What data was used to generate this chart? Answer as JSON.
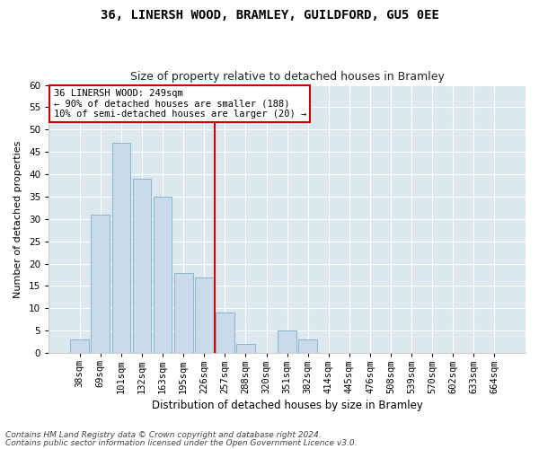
{
  "title1": "36, LINERSH WOOD, BRAMLEY, GUILDFORD, GU5 0EE",
  "title2": "Size of property relative to detached houses in Bramley",
  "xlabel": "Distribution of detached houses by size in Bramley",
  "ylabel": "Number of detached properties",
  "footnote1": "Contains HM Land Registry data © Crown copyright and database right 2024.",
  "footnote2": "Contains public sector information licensed under the Open Government Licence v3.0.",
  "annotation_title": "36 LINERSH WOOD: 249sqm",
  "annotation_line1": "← 90% of detached houses are smaller (188)",
  "annotation_line2": "10% of semi-detached houses are larger (20) →",
  "property_size": 249,
  "bar_labels": [
    "38sqm",
    "69sqm",
    "101sqm",
    "132sqm",
    "163sqm",
    "195sqm",
    "226sqm",
    "257sqm",
    "288sqm",
    "320sqm",
    "351sqm",
    "382sqm",
    "414sqm",
    "445sqm",
    "476sqm",
    "508sqm",
    "539sqm",
    "570sqm",
    "602sqm",
    "633sqm",
    "664sqm"
  ],
  "bar_values": [
    3,
    31,
    47,
    39,
    35,
    18,
    17,
    9,
    2,
    0,
    5,
    3,
    0,
    0,
    0,
    0,
    0,
    0,
    0,
    0,
    0
  ],
  "bar_color": "#c9daea",
  "bar_edge_color": "#8ab4cc",
  "vline_color": "#cc0000",
  "vline_pos": 6.5,
  "annotation_box_color": "#cc0000",
  "fig_bg_color": "#ffffff",
  "plot_bg_color": "#dbe8f0",
  "ylim": [
    0,
    60
  ],
  "yticks": [
    0,
    5,
    10,
    15,
    20,
    25,
    30,
    35,
    40,
    45,
    50,
    55,
    60
  ],
  "title1_fontsize": 10,
  "title2_fontsize": 9,
  "xlabel_fontsize": 8.5,
  "ylabel_fontsize": 8,
  "tick_fontsize": 7.5,
  "annot_fontsize": 7.5,
  "footnote_fontsize": 6.5
}
